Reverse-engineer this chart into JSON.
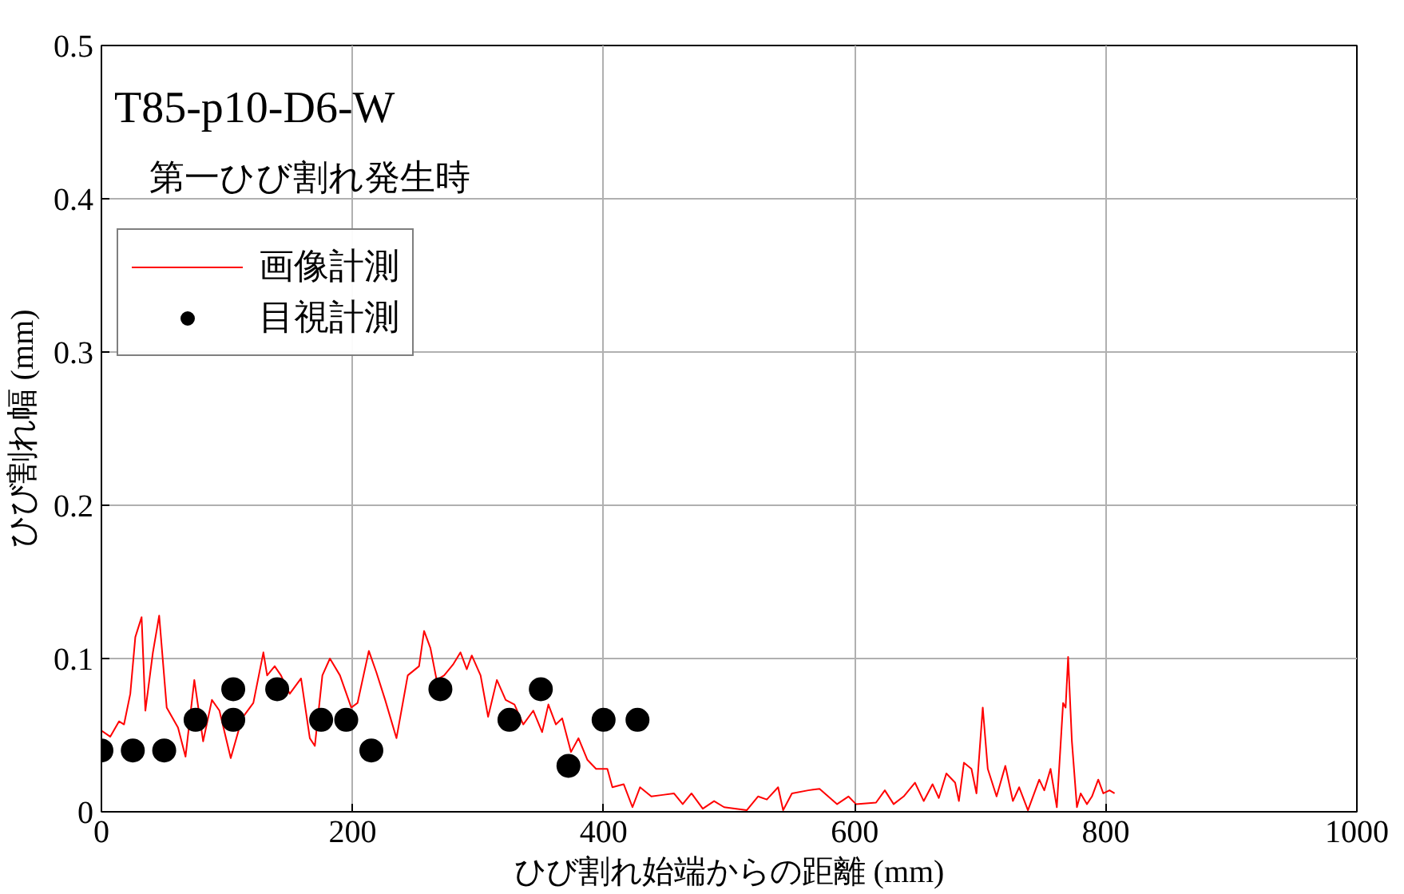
{
  "chart_data": {
    "type": "line",
    "annotations": [
      "T85-p10-D6-W",
      "第一ひび割れ発生時"
    ],
    "xlabel": "ひび割れ始端からの距離 (mm)",
    "ylabel": "ひび割れ幅 (mm)",
    "xlim": [
      0,
      1000
    ],
    "xticks": [
      0,
      200,
      400,
      600,
      800,
      1000
    ],
    "ylim": [
      0,
      0.5
    ],
    "yticks": [
      0,
      0.1,
      0.2,
      0.3,
      0.4,
      0.5
    ],
    "grid": true,
    "legend": "top left",
    "series": [
      {
        "name": "画像計測",
        "color": "#ff0000",
        "line_style": "solid",
        "x": [
          0,
          7,
          14,
          18,
          23,
          27,
          32,
          35,
          41,
          46,
          52,
          61,
          67,
          74,
          81,
          88,
          94,
          103,
          112,
          121,
          129,
          132,
          138,
          143,
          150,
          159,
          166,
          170,
          176,
          182,
          190,
          199,
          204,
          213,
          219,
          226,
          235,
          244,
          253,
          257,
          262,
          267,
          273,
          280,
          286,
          291,
          295,
          302,
          308,
          315,
          322,
          329,
          336,
          344,
          351,
          356,
          362,
          367,
          374,
          380,
          387,
          394,
          403,
          407,
          416,
          423,
          429,
          438,
          447,
          456,
          463,
          470,
          479,
          488,
          496,
          514,
          523,
          530,
          539,
          543,
          550,
          563,
          572,
          586,
          595,
          601,
          617,
          624,
          631,
          639,
          648,
          655,
          662,
          667,
          673,
          680,
          683,
          687,
          693,
          697,
          702,
          706,
          713,
          720,
          726,
          731,
          738,
          747,
          751,
          756,
          761,
          766,
          768,
          770,
          773,
          777,
          780,
          785,
          789,
          794,
          798,
          803,
          807
        ],
        "values": [
          0.053,
          0.049,
          0.059,
          0.057,
          0.077,
          0.114,
          0.127,
          0.066,
          0.104,
          0.128,
          0.068,
          0.055,
          0.036,
          0.086,
          0.046,
          0.073,
          0.066,
          0.035,
          0.061,
          0.071,
          0.104,
          0.089,
          0.095,
          0.089,
          0.077,
          0.087,
          0.048,
          0.043,
          0.089,
          0.1,
          0.089,
          0.068,
          0.071,
          0.105,
          0.091,
          0.073,
          0.048,
          0.089,
          0.095,
          0.118,
          0.107,
          0.086,
          0.089,
          0.096,
          0.104,
          0.093,
          0.102,
          0.089,
          0.062,
          0.086,
          0.073,
          0.07,
          0.057,
          0.066,
          0.052,
          0.07,
          0.057,
          0.061,
          0.039,
          0.048,
          0.034,
          0.028,
          0.028,
          0.016,
          0.018,
          0.003,
          0.016,
          0.01,
          0.011,
          0.012,
          0.005,
          0.012,
          0.002,
          0.007,
          0.003,
          0.001,
          0.01,
          0.008,
          0.016,
          0.001,
          0.012,
          0.014,
          0.015,
          0.005,
          0.01,
          0.005,
          0.006,
          0.014,
          0.005,
          0.01,
          0.019,
          0.007,
          0.018,
          0.009,
          0.025,
          0.019,
          0.007,
          0.032,
          0.028,
          0.012,
          0.068,
          0.028,
          0.01,
          0.03,
          0.007,
          0.016,
          0.001,
          0.021,
          0.014,
          0.028,
          0.003,
          0.071,
          0.068,
          0.101,
          0.046,
          0.003,
          0.012,
          0.005,
          0.01,
          0.021,
          0.012,
          0.014,
          0.012
        ]
      },
      {
        "name": "目視計測",
        "type": "scatter",
        "color": "#000000",
        "marker": "circle",
        "x": [
          0,
          25,
          50,
          75,
          105,
          105,
          140,
          175,
          195,
          215,
          270,
          325,
          350,
          372,
          400,
          427
        ],
        "values": [
          0.04,
          0.04,
          0.04,
          0.06,
          0.08,
          0.06,
          0.08,
          0.06,
          0.06,
          0.04,
          0.08,
          0.06,
          0.08,
          0.03,
          0.06,
          0.06
        ]
      }
    ]
  }
}
